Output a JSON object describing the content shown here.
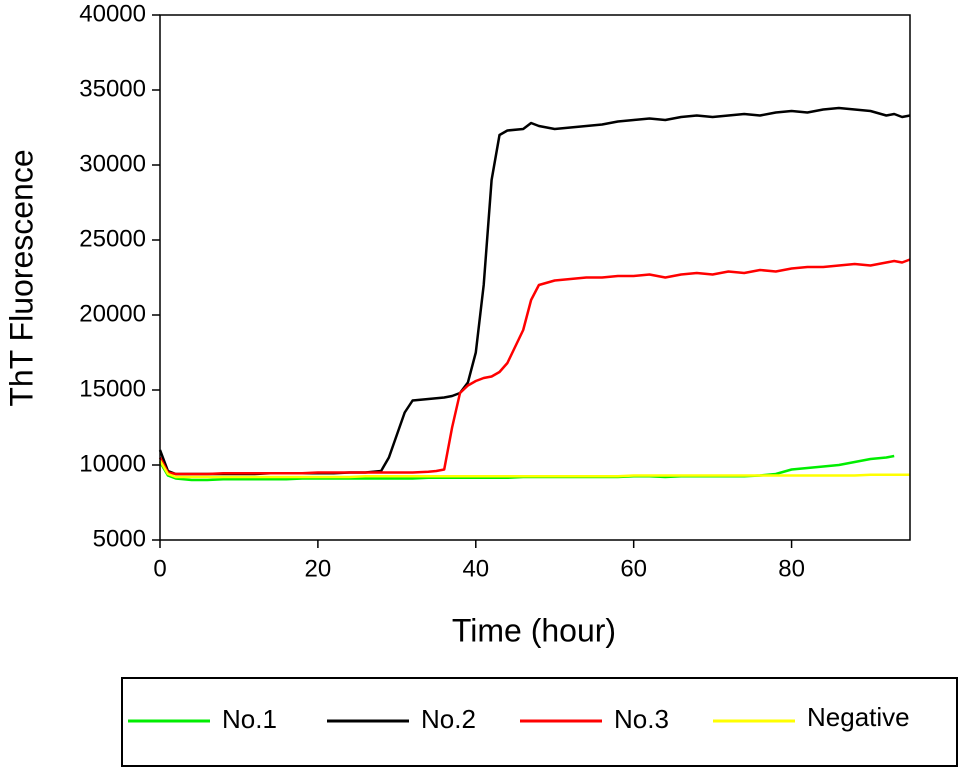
{
  "chart_data": {
    "type": "line",
    "xlabel": "Time (hour)",
    "ylabel": "ThT Fluorescence",
    "xlim": [
      0,
      95
    ],
    "xticks": [
      0,
      20,
      40,
      60,
      80
    ],
    "ylim": [
      5000,
      40000
    ],
    "yticks": [
      5000,
      10000,
      15000,
      20000,
      25000,
      30000,
      35000,
      40000
    ],
    "x": [
      0,
      1,
      2,
      4,
      6,
      8,
      10,
      12,
      14,
      16,
      18,
      20,
      22,
      24,
      26,
      28,
      29,
      30,
      31,
      32,
      34,
      35,
      36,
      37,
      38,
      39,
      40,
      41,
      42,
      43,
      44,
      46,
      47,
      48,
      50,
      52,
      54,
      56,
      58,
      60,
      62,
      64,
      66,
      68,
      70,
      72,
      74,
      76,
      78,
      80,
      82,
      84,
      86,
      88,
      90,
      92,
      93,
      94,
      95
    ],
    "legend": "bottom",
    "series": [
      {
        "name": "No.1",
        "color": "#00ee00",
        "values": [
          10200,
          9300,
          9100,
          9000,
          9000,
          9050,
          9050,
          9050,
          9050,
          9050,
          9100,
          9100,
          9100,
          9100,
          9100,
          9100,
          9100,
          9100,
          9100,
          9100,
          9150,
          9150,
          9150,
          9150,
          9150,
          9150,
          9150,
          9150,
          9150,
          9150,
          9150,
          9200,
          9200,
          9200,
          9200,
          9200,
          9200,
          9200,
          9200,
          9250,
          9250,
          9200,
          9250,
          9250,
          9250,
          9250,
          9250,
          9300,
          9400,
          9700,
          9800,
          9900,
          10000,
          10200,
          10400,
          10500,
          10600,
          null,
          null
        ]
      },
      {
        "name": "No.2",
        "color": "#000000",
        "values": [
          11000,
          9600,
          9400,
          9400,
          9400,
          9400,
          9400,
          9400,
          9450,
          9450,
          9450,
          9450,
          9450,
          9500,
          9500,
          9600,
          10500,
          12000,
          13500,
          14300,
          14400,
          14450,
          14500,
          14600,
          14800,
          15500,
          17500,
          22000,
          29000,
          32000,
          32300,
          32400,
          32800,
          32600,
          32400,
          32500,
          32600,
          32700,
          32900,
          33000,
          33100,
          33000,
          33200,
          33300,
          33200,
          33300,
          33400,
          33300,
          33500,
          33600,
          33500,
          33700,
          33800,
          33700,
          33600,
          33300,
          33400,
          33200,
          33300
        ]
      },
      {
        "name": "No.3",
        "color": "#ff0000",
        "values": [
          10500,
          9500,
          9400,
          9400,
          9400,
          9450,
          9450,
          9450,
          9450,
          9450,
          9450,
          9500,
          9500,
          9500,
          9500,
          9500,
          9500,
          9500,
          9500,
          9500,
          9550,
          9600,
          9700,
          12500,
          14800,
          15300,
          15600,
          15800,
          15900,
          16200,
          16800,
          19000,
          21000,
          22000,
          22300,
          22400,
          22500,
          22500,
          22600,
          22600,
          22700,
          22500,
          22700,
          22800,
          22700,
          22900,
          22800,
          23000,
          22900,
          23100,
          23200,
          23200,
          23300,
          23400,
          23300,
          23500,
          23600,
          23500,
          23700
        ]
      },
      {
        "name": "Negative",
        "color": "#ffff00",
        "values": [
          10300,
          9400,
          9200,
          9200,
          9200,
          9200,
          9200,
          9200,
          9200,
          9200,
          9200,
          9200,
          9200,
          9200,
          9250,
          9250,
          9250,
          9250,
          9250,
          9250,
          9250,
          9250,
          9250,
          9250,
          9250,
          9250,
          9250,
          9250,
          9250,
          9250,
          9250,
          9250,
          9250,
          9250,
          9250,
          9250,
          9250,
          9250,
          9250,
          9300,
          9300,
          9300,
          9300,
          9300,
          9300,
          9300,
          9300,
          9300,
          9300,
          9300,
          9300,
          9300,
          9300,
          9300,
          9350,
          9350,
          9350,
          9350,
          9350
        ]
      }
    ]
  }
}
